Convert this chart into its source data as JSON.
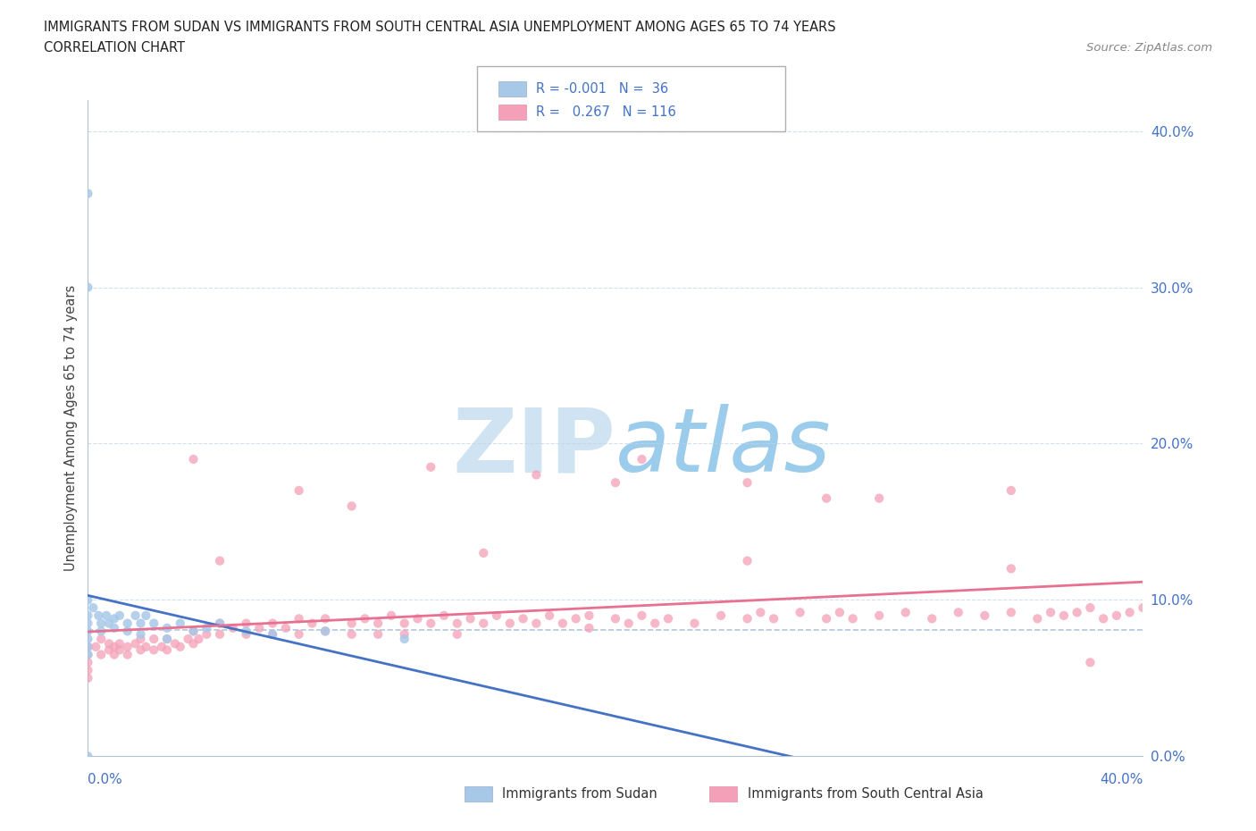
{
  "title_line1": "IMMIGRANTS FROM SUDAN VS IMMIGRANTS FROM SOUTH CENTRAL ASIA UNEMPLOYMENT AMONG AGES 65 TO 74 YEARS",
  "title_line2": "CORRELATION CHART",
  "source": "Source: ZipAtlas.com",
  "ylabel": "Unemployment Among Ages 65 to 74 years",
  "color_sudan": "#a8c8e8",
  "color_sca": "#f4a0b8",
  "color_sudan_line": "#4472c4",
  "color_sca_line": "#e87090",
  "color_dashed": "#a0b8d0",
  "watermark_color": "#cce4f0",
  "xlim": [
    0.0,
    0.4
  ],
  "ylim": [
    0.0,
    0.42
  ],
  "yticks": [
    0.0,
    0.1,
    0.2,
    0.3,
    0.4
  ],
  "ytick_labels": [
    "0.0%",
    "10.0%",
    "20.0%",
    "30.0%",
    "40.0%"
  ],
  "sudan_x": [
    0.0,
    0.0,
    0.0,
    0.0,
    0.0,
    0.0,
    0.0,
    0.0,
    0.0,
    0.0,
    0.002,
    0.004,
    0.005,
    0.005,
    0.007,
    0.008,
    0.01,
    0.01,
    0.012,
    0.015,
    0.015,
    0.018,
    0.02,
    0.02,
    0.022,
    0.025,
    0.03,
    0.03,
    0.035,
    0.04,
    0.045,
    0.05,
    0.06,
    0.07,
    0.09,
    0.12
  ],
  "sudan_y": [
    0.36,
    0.3,
    0.1,
    0.09,
    0.085,
    0.08,
    0.075,
    0.07,
    0.065,
    0.0,
    0.095,
    0.09,
    0.085,
    0.08,
    0.09,
    0.085,
    0.088,
    0.082,
    0.09,
    0.085,
    0.08,
    0.09,
    0.085,
    0.078,
    0.09,
    0.085,
    0.082,
    0.075,
    0.085,
    0.08,
    0.082,
    0.085,
    0.08,
    0.078,
    0.08,
    0.075
  ],
  "sca_x": [
    0.0,
    0.0,
    0.0,
    0.0,
    0.0,
    0.003,
    0.005,
    0.005,
    0.008,
    0.008,
    0.01,
    0.01,
    0.012,
    0.012,
    0.015,
    0.015,
    0.018,
    0.02,
    0.02,
    0.022,
    0.025,
    0.025,
    0.028,
    0.03,
    0.03,
    0.033,
    0.035,
    0.038,
    0.04,
    0.04,
    0.042,
    0.045,
    0.05,
    0.05,
    0.055,
    0.06,
    0.06,
    0.065,
    0.07,
    0.07,
    0.075,
    0.08,
    0.08,
    0.085,
    0.09,
    0.09,
    0.1,
    0.1,
    0.105,
    0.11,
    0.11,
    0.115,
    0.12,
    0.12,
    0.125,
    0.13,
    0.135,
    0.14,
    0.14,
    0.145,
    0.15,
    0.155,
    0.16,
    0.165,
    0.17,
    0.175,
    0.18,
    0.185,
    0.19,
    0.19,
    0.2,
    0.205,
    0.21,
    0.215,
    0.22,
    0.23,
    0.24,
    0.25,
    0.255,
    0.26,
    0.27,
    0.28,
    0.285,
    0.29,
    0.3,
    0.31,
    0.32,
    0.33,
    0.34,
    0.35,
    0.36,
    0.365,
    0.37,
    0.375,
    0.38,
    0.385,
    0.39,
    0.395,
    0.4,
    0.04,
    0.08,
    0.13,
    0.17,
    0.21,
    0.25,
    0.3,
    0.35,
    0.1,
    0.2,
    0.28,
    0.38,
    0.05,
    0.15,
    0.25,
    0.35
  ],
  "sca_y": [
    0.07,
    0.065,
    0.06,
    0.055,
    0.05,
    0.07,
    0.075,
    0.065,
    0.072,
    0.068,
    0.07,
    0.065,
    0.072,
    0.068,
    0.07,
    0.065,
    0.072,
    0.075,
    0.068,
    0.07,
    0.075,
    0.068,
    0.07,
    0.075,
    0.068,
    0.072,
    0.07,
    0.075,
    0.08,
    0.072,
    0.075,
    0.078,
    0.085,
    0.078,
    0.082,
    0.085,
    0.078,
    0.082,
    0.085,
    0.078,
    0.082,
    0.088,
    0.078,
    0.085,
    0.088,
    0.08,
    0.085,
    0.078,
    0.088,
    0.085,
    0.078,
    0.09,
    0.085,
    0.078,
    0.088,
    0.085,
    0.09,
    0.085,
    0.078,
    0.088,
    0.085,
    0.09,
    0.085,
    0.088,
    0.085,
    0.09,
    0.085,
    0.088,
    0.09,
    0.082,
    0.088,
    0.085,
    0.09,
    0.085,
    0.088,
    0.085,
    0.09,
    0.088,
    0.092,
    0.088,
    0.092,
    0.088,
    0.092,
    0.088,
    0.09,
    0.092,
    0.088,
    0.092,
    0.09,
    0.092,
    0.088,
    0.092,
    0.09,
    0.092,
    0.095,
    0.088,
    0.09,
    0.092,
    0.095,
    0.19,
    0.17,
    0.185,
    0.18,
    0.19,
    0.175,
    0.165,
    0.17,
    0.16,
    0.175,
    0.165,
    0.06,
    0.125,
    0.13,
    0.125,
    0.12
  ]
}
